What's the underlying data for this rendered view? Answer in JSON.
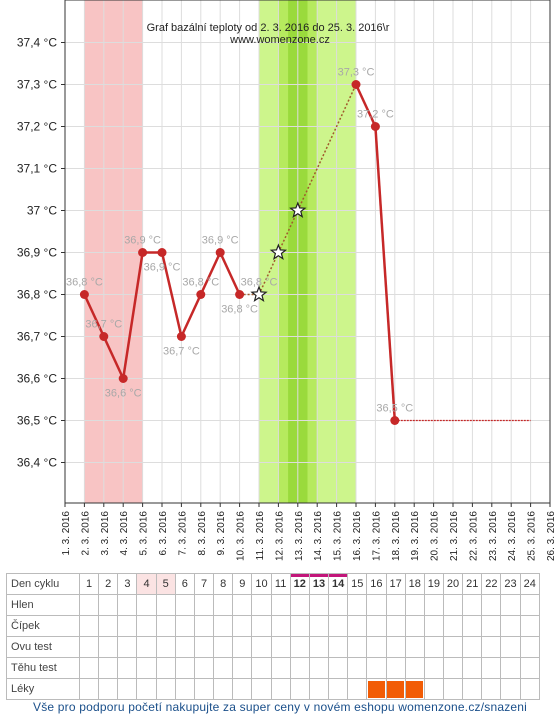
{
  "chart_data": {
    "type": "line",
    "title": "Graf bazální teploty od 2. 3. 2016 do 25. 3. 2016\\r",
    "subtitle": "www.womenzone.cz",
    "ylim": [
      36.3,
      37.5
    ],
    "y_ticks": [
      "36,4 °C",
      "36,5 °C",
      "36,6 °C",
      "36,7 °C",
      "36,8 °C",
      "36,9 °C",
      "37 °C",
      "37,1 °C",
      "37,2 °C",
      "37,3 °C",
      "37,4 °C"
    ],
    "x_ticks": [
      "1. 3. 2016",
      "2. 3. 2016",
      "3. 3. 2016",
      "4. 3. 2016",
      "5. 3. 2016",
      "6. 3. 2016",
      "7. 3. 2016",
      "8. 3. 2016",
      "9. 3. 2016",
      "10. 3. 2016",
      "11. 3. 2016",
      "12. 3. 2016",
      "13. 3. 2016",
      "14. 3. 2016",
      "15. 3. 2016",
      "16. 3. 2016",
      "17. 3. 2016",
      "18. 3. 2016",
      "19. 3. 2016",
      "20. 3. 2016",
      "21. 3. 2016",
      "22. 3. 2016",
      "23. 3. 2016",
      "24. 3. 2016",
      "25. 3. 2016",
      "26. 3. 2016"
    ],
    "series": [
      {
        "points": [
          {
            "day": 2,
            "value": 36.8,
            "label": "36,8 °C",
            "marker": "dot"
          },
          {
            "day": 3,
            "value": 36.7,
            "label": "36,7 °C",
            "marker": "dot"
          },
          {
            "day": 4,
            "value": 36.6,
            "label": "36,6 °C",
            "marker": "dot"
          },
          {
            "day": 5,
            "value": 36.9,
            "label": "36,9 °C",
            "marker": "dot"
          },
          {
            "day": 6,
            "value": 36.9,
            "label": "36,9 °C",
            "marker": "dot"
          },
          {
            "day": 7,
            "value": 36.7,
            "label": "36,7 °C",
            "marker": "dot"
          },
          {
            "day": 8,
            "value": 36.8,
            "label": "36,8 °C",
            "marker": "dot"
          },
          {
            "day": 9,
            "value": 36.9,
            "label": "36,9 °C",
            "marker": "dot"
          },
          {
            "day": 10,
            "value": 36.8,
            "label": "36,8 °C",
            "marker": "dot"
          },
          {
            "day": 11,
            "value": 36.8,
            "label": "36,8 °C",
            "marker": "star"
          },
          {
            "day": 12,
            "value": 36.9,
            "label": "",
            "marker": "star"
          },
          {
            "day": 13,
            "value": 37.0,
            "label": "",
            "marker": "star"
          },
          {
            "day": 16,
            "value": 37.3,
            "label": "37,3 °C",
            "marker": "dot"
          },
          {
            "day": 17,
            "value": 37.2,
            "label": "37,2 °C",
            "marker": "dot"
          },
          {
            "day": 18,
            "value": 36.5,
            "label": "36,5 °C",
            "marker": "dot"
          }
        ],
        "extension_to_day": 25,
        "color": "#c62828"
      }
    ],
    "bands": [
      {
        "from_day": 2,
        "to_day": 5,
        "color": "#f8c4c4"
      },
      {
        "from_day": 11,
        "to_day": 16,
        "color": "#cdf58c"
      },
      {
        "from_day": 12,
        "to_day": 14,
        "color": "#b6ea5e"
      },
      {
        "from_day": 12.5,
        "to_day": 13.5,
        "color": "#9ada3c"
      }
    ],
    "grid": true
  },
  "table": {
    "rows": [
      {
        "label": "Den cyklu",
        "cells": [
          "1",
          "2",
          "3",
          "4",
          "5",
          "6",
          "7",
          "8",
          "9",
          "10",
          "11",
          "12",
          "13",
          "14",
          "15",
          "16",
          "17",
          "18",
          "19",
          "20",
          "21",
          "22",
          "23",
          "24"
        ]
      },
      {
        "label": "Hlen",
        "cells": []
      },
      {
        "label": "Čípek",
        "cells": []
      },
      {
        "label": "Ovu test",
        "cells": []
      },
      {
        "label": "Těhu test",
        "cells": []
      },
      {
        "label": "Léky",
        "cells": []
      }
    ],
    "period_days": [
      4,
      5
    ],
    "bold_days": [
      12,
      13,
      14
    ],
    "marked_days": [
      12,
      13,
      14
    ],
    "medication_days": [
      16,
      17,
      18
    ],
    "medication_color": "#f25c05"
  },
  "footer": {
    "text": "Vše pro podporu početí nakupujte za super ceny v novém eshopu womenzone.cz/snazeni"
  }
}
